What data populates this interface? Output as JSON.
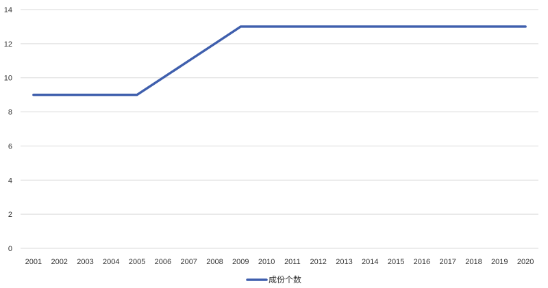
{
  "chart_data": {
    "type": "line",
    "title": "",
    "xlabel": "",
    "ylabel": "",
    "x": [
      "2001",
      "2002",
      "2003",
      "2004",
      "2005",
      "2006",
      "2007",
      "2008",
      "2009",
      "2010",
      "2011",
      "2012",
      "2013",
      "2014",
      "2015",
      "2016",
      "2017",
      "2018",
      "2019",
      "2020"
    ],
    "series": [
      {
        "name": "成份个数",
        "values": [
          9,
          9,
          9,
          9,
          9,
          10,
          11,
          12,
          13,
          13,
          13,
          13,
          13,
          13,
          13,
          13,
          13,
          13,
          13,
          13
        ],
        "color": "#3f5fad"
      }
    ],
    "ylim": [
      0,
      14
    ],
    "yticks": [
      0,
      2,
      4,
      6,
      8,
      10,
      12,
      14
    ],
    "grid": true,
    "legend_position": "bottom-center"
  }
}
